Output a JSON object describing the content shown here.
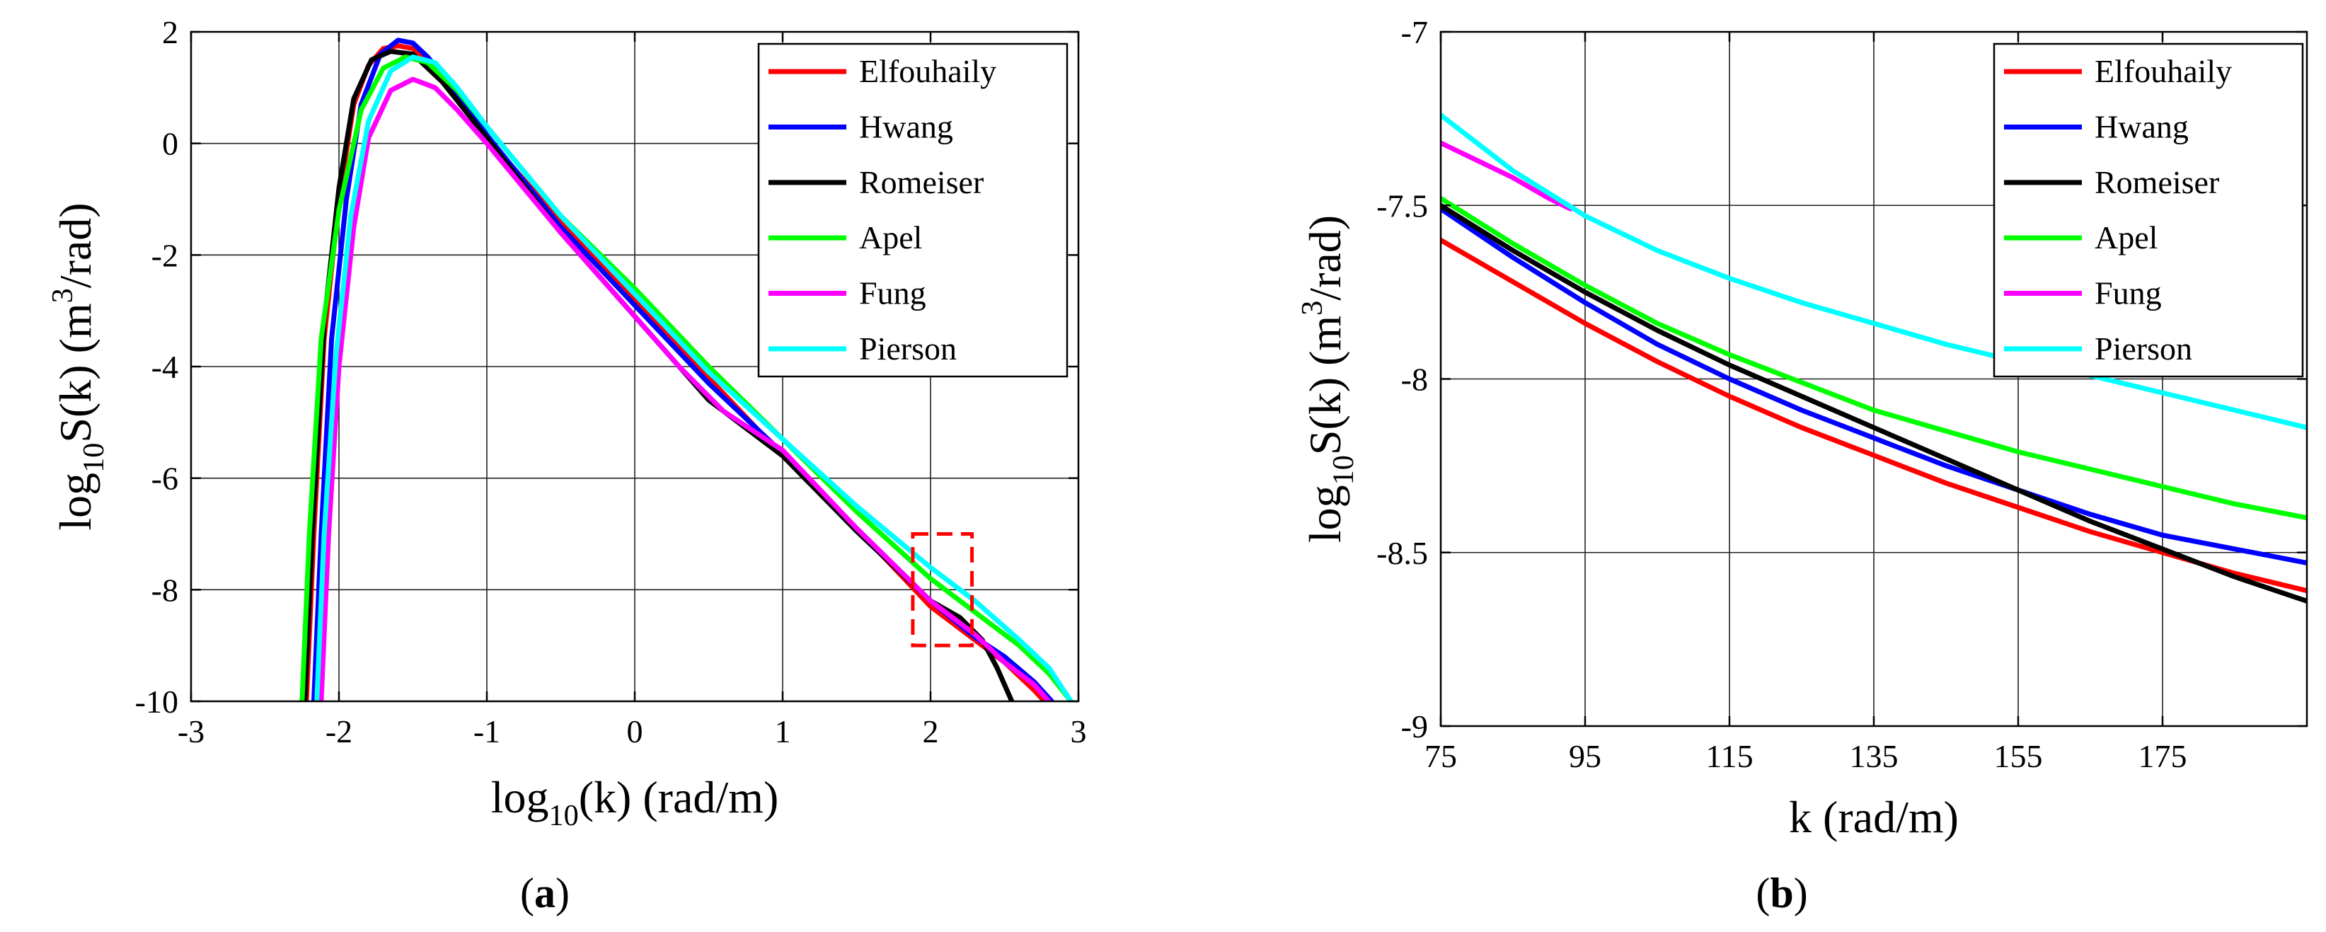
{
  "chart_data": [
    {
      "type": "line",
      "panel_label": "(a)",
      "panel_letter": "a",
      "xlabel": {
        "base": "log",
        "sub": "10",
        "rest": "(k) (rad/m)"
      },
      "ylabel": {
        "base": "log",
        "sub": "10",
        "mid": "S(k) (m",
        "sup": "3",
        "end": "/rad)"
      },
      "xlim": [
        -3,
        3
      ],
      "ylim": [
        -10,
        2
      ],
      "xticks": [
        -3,
        -2,
        -1,
        0,
        1,
        2,
        3
      ],
      "xtick_labels": [
        "-3",
        "-2",
        "-1",
        "0",
        "1",
        "2",
        "3"
      ],
      "yticks": [
        -10,
        -8,
        -6,
        -4,
        -2,
        0,
        2
      ],
      "ytick_labels": [
        "-10",
        "-8",
        "-6",
        "-4",
        "-2",
        "0",
        "2"
      ],
      "grid": true,
      "legend_position": "top-right",
      "annotation": {
        "type": "dashed-rectangle",
        "color": "#ff0000",
        "x": [
          1.88,
          2.28
        ],
        "y": [
          -9.0,
          -7.0
        ]
      },
      "series": [
        {
          "name": "Elfouhaily",
          "color": "#ff0000",
          "points": [
            [
              -2.22,
              -10
            ],
            [
              -2.17,
              -7
            ],
            [
              -2.1,
              -3.5
            ],
            [
              -2.0,
              -1.0
            ],
            [
              -1.9,
              0.7
            ],
            [
              -1.8,
              1.4
            ],
            [
              -1.7,
              1.7
            ],
            [
              -1.6,
              1.75
            ],
            [
              -1.5,
              1.7
            ],
            [
              -1.4,
              1.5
            ],
            [
              -1.2,
              0.9
            ],
            [
              -1.0,
              0.1
            ],
            [
              -0.5,
              -1.4
            ],
            [
              0,
              -2.8
            ],
            [
              0.5,
              -4.2
            ],
            [
              1.0,
              -5.6
            ],
            [
              1.5,
              -6.9
            ],
            [
              2.0,
              -8.3
            ],
            [
              2.3,
              -8.9
            ],
            [
              2.5,
              -9.3
            ],
            [
              2.7,
              -9.8
            ],
            [
              2.77,
              -10
            ]
          ]
        },
        {
          "name": "Hwang",
          "color": "#0000ff",
          "points": [
            [
              -2.17,
              -10
            ],
            [
              -2.12,
              -7
            ],
            [
              -2.05,
              -3.5
            ],
            [
              -1.95,
              -1.0
            ],
            [
              -1.85,
              0.7
            ],
            [
              -1.72,
              1.6
            ],
            [
              -1.6,
              1.85
            ],
            [
              -1.5,
              1.8
            ],
            [
              -1.4,
              1.55
            ],
            [
              -1.2,
              0.9
            ],
            [
              -1.0,
              0.15
            ],
            [
              -0.5,
              -1.5
            ],
            [
              0,
              -2.9
            ],
            [
              0.5,
              -4.3
            ],
            [
              1.0,
              -5.55
            ],
            [
              1.5,
              -6.9
            ],
            [
              2.0,
              -8.2
            ],
            [
              2.3,
              -8.85
            ],
            [
              2.5,
              -9.2
            ],
            [
              2.7,
              -9.65
            ],
            [
              2.82,
              -10
            ]
          ]
        },
        {
          "name": "Romeiser",
          "color": "#000000",
          "points": [
            [
              -2.23,
              -10
            ],
            [
              -2.18,
              -7
            ],
            [
              -2.1,
              -3.2
            ],
            [
              -2.0,
              -0.8
            ],
            [
              -1.9,
              0.8
            ],
            [
              -1.78,
              1.5
            ],
            [
              -1.65,
              1.65
            ],
            [
              -1.5,
              1.6
            ],
            [
              -1.3,
              1.1
            ],
            [
              -1.0,
              0.1
            ],
            [
              -0.5,
              -1.6
            ],
            [
              0,
              -3.1
            ],
            [
              0.5,
              -4.6
            ],
            [
              1.0,
              -5.6
            ],
            [
              1.5,
              -6.95
            ],
            [
              2.0,
              -8.2
            ],
            [
              2.2,
              -8.5
            ],
            [
              2.35,
              -8.9
            ],
            [
              2.45,
              -9.4
            ],
            [
              2.55,
              -10
            ]
          ]
        },
        {
          "name": "Apel",
          "color": "#00ff00",
          "points": [
            [
              -2.25,
              -10
            ],
            [
              -2.2,
              -7
            ],
            [
              -2.12,
              -3.5
            ],
            [
              -2.0,
              -1.2
            ],
            [
              -1.85,
              0.6
            ],
            [
              -1.7,
              1.35
            ],
            [
              -1.55,
              1.55
            ],
            [
              -1.4,
              1.45
            ],
            [
              -1.2,
              0.95
            ],
            [
              -1.0,
              0.3
            ],
            [
              -0.5,
              -1.3
            ],
            [
              0,
              -2.6
            ],
            [
              0.5,
              -4.0
            ],
            [
              1.0,
              -5.3
            ],
            [
              1.5,
              -6.6
            ],
            [
              2.0,
              -7.8
            ],
            [
              2.3,
              -8.4
            ],
            [
              2.6,
              -9.0
            ],
            [
              2.8,
              -9.5
            ],
            [
              2.95,
              -10
            ]
          ]
        },
        {
          "name": "Fung",
          "color": "#ff00ff",
          "points": [
            [
              -2.12,
              -10
            ],
            [
              -2.07,
              -7
            ],
            [
              -2.0,
              -4.0
            ],
            [
              -1.9,
              -1.5
            ],
            [
              -1.8,
              0.1
            ],
            [
              -1.65,
              0.95
            ],
            [
              -1.5,
              1.15
            ],
            [
              -1.35,
              1.0
            ],
            [
              -1.2,
              0.6
            ],
            [
              -1.0,
              0.0
            ],
            [
              -0.5,
              -1.6
            ],
            [
              0,
              -3.1
            ],
            [
              0.3,
              -4.0
            ],
            [
              0.6,
              -4.8
            ],
            [
              1.0,
              -5.5
            ],
            [
              1.5,
              -6.9
            ],
            [
              2.0,
              -8.2
            ],
            [
              2.3,
              -8.8
            ],
            [
              2.5,
              -9.3
            ],
            [
              2.7,
              -9.7
            ],
            [
              2.8,
              -10
            ]
          ]
        },
        {
          "name": "Pierson",
          "color": "#00ffff",
          "points": [
            [
              -2.15,
              -10
            ],
            [
              -2.1,
              -7
            ],
            [
              -2.02,
              -3.8
            ],
            [
              -1.92,
              -1.3
            ],
            [
              -1.8,
              0.4
            ],
            [
              -1.65,
              1.3
            ],
            [
              -1.5,
              1.55
            ],
            [
              -1.35,
              1.45
            ],
            [
              -1.2,
              1.0
            ],
            [
              -1.0,
              0.3
            ],
            [
              -0.5,
              -1.3
            ],
            [
              0,
              -2.7
            ],
            [
              0.5,
              -4.1
            ],
            [
              1.0,
              -5.3
            ],
            [
              1.5,
              -6.5
            ],
            [
              2.0,
              -7.6
            ],
            [
              2.3,
              -8.2
            ],
            [
              2.6,
              -8.9
            ],
            [
              2.8,
              -9.4
            ],
            [
              2.95,
              -10
            ]
          ]
        }
      ]
    },
    {
      "type": "line",
      "panel_label": "(b)",
      "panel_letter": "b",
      "xlabel": {
        "text": "k (rad/m)"
      },
      "ylabel": {
        "base": "log",
        "sub": "10",
        "mid": "S(k) (m",
        "sup": "3",
        "end": "/rad)"
      },
      "xlim": [
        75,
        195
      ],
      "ylim": [
        -9,
        -7
      ],
      "xticks": [
        75,
        95,
        115,
        135,
        155,
        175
      ],
      "xtick_labels": [
        "75",
        "95",
        "115",
        "135",
        "155",
        "175"
      ],
      "yticks": [
        -9,
        -8.5,
        -8,
        -7.5,
        -7
      ],
      "ytick_labels": [
        "-9",
        "-8.5",
        "-8",
        "-7.5",
        "-7"
      ],
      "grid": true,
      "legend_position": "top-right",
      "series": [
        {
          "name": "Elfouhaily",
          "color": "#ff0000",
          "points": [
            [
              75,
              -7.6
            ],
            [
              85,
              -7.72
            ],
            [
              95,
              -7.84
            ],
            [
              105,
              -7.95
            ],
            [
              115,
              -8.05
            ],
            [
              125,
              -8.14
            ],
            [
              135,
              -8.22
            ],
            [
              145,
              -8.3
            ],
            [
              155,
              -8.37
            ],
            [
              165,
              -8.44
            ],
            [
              175,
              -8.5
            ],
            [
              185,
              -8.56
            ],
            [
              195,
              -8.61
            ]
          ]
        },
        {
          "name": "Hwang",
          "color": "#0000ff",
          "points": [
            [
              75,
              -7.51
            ],
            [
              85,
              -7.65
            ],
            [
              95,
              -7.78
            ],
            [
              105,
              -7.9
            ],
            [
              115,
              -8.0
            ],
            [
              125,
              -8.09
            ],
            [
              135,
              -8.17
            ],
            [
              145,
              -8.25
            ],
            [
              155,
              -8.32
            ],
            [
              165,
              -8.39
            ],
            [
              175,
              -8.45
            ],
            [
              185,
              -8.49
            ],
            [
              195,
              -8.53
            ]
          ]
        },
        {
          "name": "Romeiser",
          "color": "#000000",
          "points": [
            [
              75,
              -7.5
            ],
            [
              85,
              -7.63
            ],
            [
              95,
              -7.75
            ],
            [
              105,
              -7.86
            ],
            [
              115,
              -7.96
            ],
            [
              125,
              -8.05
            ],
            [
              135,
              -8.14
            ],
            [
              145,
              -8.23
            ],
            [
              155,
              -8.32
            ],
            [
              165,
              -8.41
            ],
            [
              175,
              -8.49
            ],
            [
              185,
              -8.57
            ],
            [
              195,
              -8.64
            ]
          ]
        },
        {
          "name": "Apel",
          "color": "#00ff00",
          "points": [
            [
              75,
              -7.48
            ],
            [
              85,
              -7.61
            ],
            [
              95,
              -7.73
            ],
            [
              105,
              -7.84
            ],
            [
              115,
              -7.93
            ],
            [
              125,
              -8.01
            ],
            [
              135,
              -8.09
            ],
            [
              145,
              -8.15
            ],
            [
              155,
              -8.21
            ],
            [
              165,
              -8.26
            ],
            [
              175,
              -8.31
            ],
            [
              185,
              -8.36
            ],
            [
              195,
              -8.4
            ]
          ]
        },
        {
          "name": "Fung",
          "color": "#ff00ff",
          "points": [
            [
              75,
              -7.32
            ],
            [
              80,
              -7.37
            ],
            [
              85,
              -7.42
            ],
            [
              90,
              -7.48
            ],
            [
              93,
              -7.51
            ]
          ]
        },
        {
          "name": "Pierson",
          "color": "#00ffff",
          "points": [
            [
              75,
              -7.24
            ],
            [
              85,
              -7.4
            ],
            [
              95,
              -7.53
            ],
            [
              105,
              -7.63
            ],
            [
              115,
              -7.71
            ],
            [
              125,
              -7.78
            ],
            [
              135,
              -7.84
            ],
            [
              145,
              -7.9
            ],
            [
              155,
              -7.95
            ],
            [
              165,
              -7.99
            ],
            [
              175,
              -8.04
            ],
            [
              185,
              -8.09
            ],
            [
              195,
              -8.14
            ]
          ]
        }
      ]
    }
  ]
}
